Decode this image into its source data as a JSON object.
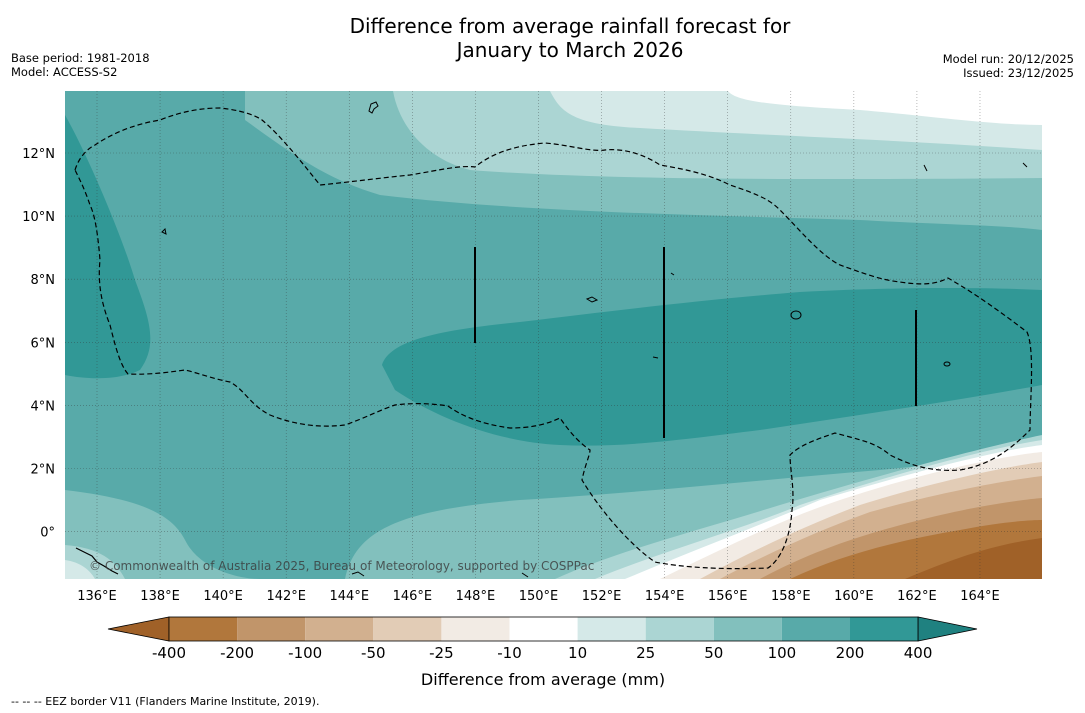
{
  "title": {
    "line1": "Difference from average rainfall forecast for",
    "line2": "January to March 2026"
  },
  "meta_left": {
    "base_period": "Base period: 1981-2018",
    "model": "Model: ACCESS-S2"
  },
  "meta_right": {
    "model_run": "Model run: 20/12/2025",
    "issued": "Issued: 23/12/2025"
  },
  "axes": {
    "lat_labels": [
      "12°N",
      "10°N",
      "8°N",
      "6°N",
      "4°N",
      "2°N",
      "0°"
    ],
    "lon_labels": [
      "136°E",
      "138°E",
      "140°E",
      "142°E",
      "144°E",
      "146°E",
      "148°E",
      "150°E",
      "152°E",
      "154°E",
      "156°E",
      "158°E",
      "160°E",
      "162°E",
      "164°E"
    ]
  },
  "copyright": "© Commonwealth of Australia 2025, Bureau of Meteorology, supported by COSPPac",
  "colorbar": {
    "title": "Difference from average (mm)",
    "tick_labels": [
      "-400",
      "-200",
      "-100",
      "-50",
      "-25",
      "-10",
      "10",
      "25",
      "50",
      "100",
      "200",
      "400"
    ],
    "colors": {
      "lt_m400": "#a06128",
      "m400_m200": "#b1773c",
      "m200_m100": "#c1956a",
      "m100_m50": "#d2b08f",
      "m50_m25": "#e2ccb6",
      "m25_m10": "#f2ebe4",
      "m10_10": "#ffffff",
      "p10_25": "#d5e9e8",
      "p25_50": "#abd5d3",
      "p50_100": "#82c0bd",
      "p100_200": "#58aaa9",
      "p200_400": "#319896",
      "gt_400": "#1f8180"
    }
  },
  "footnote": "--  --  -- EEZ border V11 (Flanders Marine Institute, 2019)."
}
